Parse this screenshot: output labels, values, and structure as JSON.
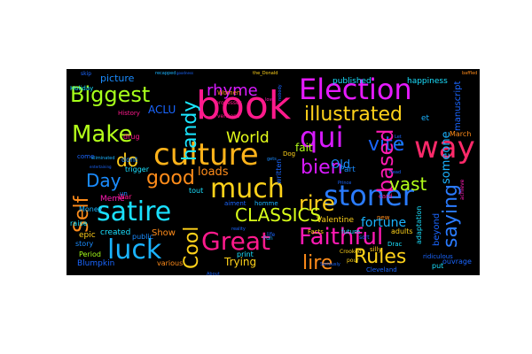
{
  "wordcloud": {
    "background": "#000000",
    "words": [
      {
        "text": "book",
        "color": "#ff1a8c"
      },
      {
        "text": "Election",
        "color": "#e61aff"
      },
      {
        "text": "culture",
        "color": "#ffb31a"
      },
      {
        "text": "way",
        "color": "#ff2a6a"
      },
      {
        "text": "qui",
        "color": "#d81aff"
      },
      {
        "text": "illustrated",
        "color": "#ffd21a"
      },
      {
        "text": "Biggest",
        "color": "#a6ff1a"
      },
      {
        "text": "Make",
        "color": "#b3ff1a"
      },
      {
        "text": "much",
        "color": "#ffd21a"
      },
      {
        "text": "stoner",
        "color": "#2a7bff"
      },
      {
        "text": "satire",
        "color": "#1ae0ff"
      },
      {
        "text": "luck",
        "color": "#1ab3ff"
      },
      {
        "text": "Great",
        "color": "#ff1a8c"
      },
      {
        "text": "Faithful",
        "color": "#ff1ab3"
      },
      {
        "text": "Self",
        "color": "#ff8c1a"
      },
      {
        "text": "handy",
        "color": "#1ae6ff"
      },
      {
        "text": "rhyme",
        "color": "#d81aff"
      },
      {
        "text": "World",
        "color": "#e6ff1a"
      },
      {
        "text": "good",
        "color": "#ff8c1a"
      },
      {
        "text": "do",
        "color": "#ffcc1a"
      },
      {
        "text": "Day",
        "color": "#1a8cff"
      },
      {
        "text": "bien",
        "color": "#d81aff"
      },
      {
        "text": "vite",
        "color": "#1a66ff"
      },
      {
        "text": "based",
        "color": "#ff1ab3"
      },
      {
        "text": "vast",
        "color": "#b3ff1a"
      },
      {
        "text": "saying",
        "color": "#2a7bff"
      },
      {
        "text": "rire",
        "color": "#ffcc1a"
      },
      {
        "text": "CLASSICS",
        "color": "#d9ff1a"
      },
      {
        "text": "Cool",
        "color": "#ffd21a"
      },
      {
        "text": "lire",
        "color": "#ff8c1a"
      },
      {
        "text": "Rules",
        "color": "#ffd21a"
      },
      {
        "text": "fortune",
        "color": "#1ab3ff"
      },
      {
        "text": "fait",
        "color": "#b3ff1a"
      },
      {
        "text": "Old",
        "color": "#1a8cff"
      },
      {
        "text": "loads",
        "color": "#ff8c1a"
      },
      {
        "text": "ACLU",
        "color": "#1a66ff"
      },
      {
        "text": "picture",
        "color": "#1a8cff"
      },
      {
        "text": "someone",
        "color": "#1ab3ff"
      },
      {
        "text": "Trying",
        "color": "#ffd21a"
      },
      {
        "text": "Show",
        "color": "#ff8c1a"
      },
      {
        "text": "beyond",
        "color": "#1a66ff"
      },
      {
        "text": "manuscript",
        "color": "#1a66ff"
      },
      {
        "text": "published",
        "color": "#1ae0ff"
      },
      {
        "text": "happiness",
        "color": "#1ae0ff"
      },
      {
        "text": "Valentine",
        "color": "#ffd21a"
      },
      {
        "text": "Part",
        "color": "#1a8cff"
      },
      {
        "text": "Meme",
        "color": "#ff1ab3"
      },
      {
        "text": "epic",
        "color": "#ffcc1a"
      },
      {
        "text": "created",
        "color": "#1ae0ff"
      },
      {
        "text": "Money",
        "color": "#1ab3ff"
      },
      {
        "text": "War",
        "color": "#ff1a8c"
      },
      {
        "text": "raise",
        "color": "#1ae0ff"
      },
      {
        "text": "story",
        "color": "#1a8cff"
      },
      {
        "text": "Period",
        "color": "#a6ff1a"
      },
      {
        "text": "public",
        "color": "#1a8cff"
      },
      {
        "text": "various",
        "color": "#ff8c1a"
      },
      {
        "text": "print",
        "color": "#1ae0ff"
      },
      {
        "text": "Blumpkin",
        "color": "#1a66ff"
      },
      {
        "text": "dont",
        "color": "#1a8cff"
      },
      {
        "text": "come",
        "color": "#1a66ff"
      },
      {
        "text": "drug",
        "color": "#ff1a8c"
      },
      {
        "text": "trigger",
        "color": "#1ae0ff"
      },
      {
        "text": "Holiday",
        "color": "#1ae0ff"
      },
      {
        "text": "History",
        "color": "#ff1a8c"
      },
      {
        "text": "Women",
        "color": "#ff8c1a"
      },
      {
        "text": "tout",
        "color": "#1ae0ff"
      },
      {
        "text": "un",
        "color": "#1a8cff"
      },
      {
        "text": "homme",
        "color": "#1ab3ff"
      },
      {
        "text": "Dog",
        "color": "#ffd21a"
      },
      {
        "text": "written",
        "color": "#1a66ff"
      },
      {
        "text": "Facts",
        "color": "#ffd21a"
      },
      {
        "text": "future",
        "color": "#1ae0ff"
      },
      {
        "text": "adults",
        "color": "#ffd21a"
      },
      {
        "text": "adaptation",
        "color": "#1ae0ff"
      },
      {
        "text": "ridiculous",
        "color": "#1a66ff"
      },
      {
        "text": "ouvrage",
        "color": "#1a66ff"
      },
      {
        "text": "put",
        "color": "#1ae0ff"
      },
      {
        "text": "new",
        "color": "#ff8c1a"
      },
      {
        "text": "Drac",
        "color": "#1ae0ff"
      },
      {
        "text": "silly",
        "color": "#ffcc1a"
      },
      {
        "text": "Cleveland",
        "color": "#1a66ff"
      },
      {
        "text": "Crooked",
        "color": "#ffd21a"
      },
      {
        "text": "pour",
        "color": "#ffd21a"
      },
      {
        "text": "card",
        "color": "#ff1a8c"
      },
      {
        "text": "et",
        "color": "#1ab3ff"
      },
      {
        "text": "March",
        "color": "#ff8c1a"
      },
      {
        "text": "Fun",
        "color": "#1ab3ff"
      },
      {
        "text": "aiment",
        "color": "#1a66ff"
      },
      {
        "text": "sort",
        "color": "#1a66ff"
      },
      {
        "text": "life",
        "color": "#1a66ff"
      },
      {
        "text": "processes",
        "color": "#ff1a8c"
      },
      {
        "text": "versions",
        "color": "#ff1a8c"
      },
      {
        "text": "the_Donald",
        "color": "#ffd21a"
      },
      {
        "text": "recapped",
        "color": "#1ab3ff"
      },
      {
        "text": "entertaining",
        "color": "#1a66ff"
      },
      {
        "text": "eliminated",
        "color": "#1ab3ff"
      },
      {
        "text": "gets",
        "color": "#1a8cff"
      },
      {
        "text": "nobody",
        "color": "#1a66ff"
      },
      {
        "text": "achieve",
        "color": "#ff1ab3"
      },
      {
        "text": "goodness",
        "color": "#1a66ff"
      },
      {
        "text": "baffled",
        "color": "#ff8c1a"
      },
      {
        "text": "skip",
        "color": "#1a66ff"
      },
      {
        "text": "Can",
        "color": "#1ab3ff"
      },
      {
        "text": "reality",
        "color": "#1a66ff"
      },
      {
        "text": "love",
        "color": "#ff1ab3"
      },
      {
        "text": "Let",
        "color": "#1a66ff"
      },
      {
        "text": "Prince",
        "color": "#1a66ff"
      },
      {
        "text": "Dead",
        "color": "#1a66ff"
      },
      {
        "text": "Seriously",
        "color": "#1a66ff"
      },
      {
        "text": "About",
        "color": "#1a66ff"
      }
    ]
  }
}
